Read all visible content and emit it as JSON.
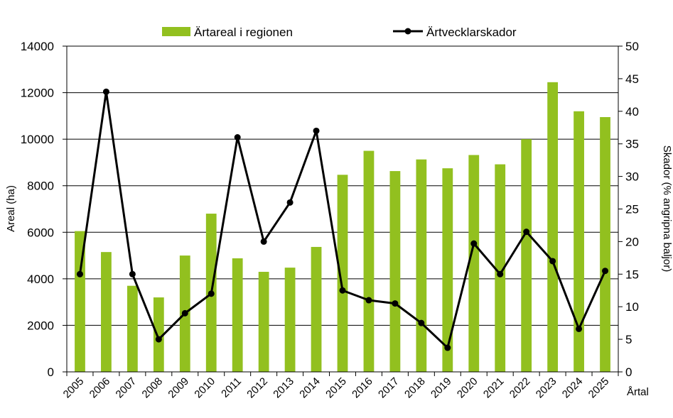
{
  "chart_data": {
    "type": "bar",
    "title": "",
    "categories": [
      "2005",
      "2006",
      "2007",
      "2008",
      "2009",
      "2010",
      "2011",
      "2012",
      "2013",
      "2014",
      "2015",
      "2016",
      "2017",
      "2018",
      "2019",
      "2020",
      "2021",
      "2022",
      "2023",
      "2024",
      "2025"
    ],
    "xlabel": "Årtal",
    "ylabel_left": "Areal (ha)",
    "ylabel_right": "Skador (% angripna baljor)",
    "ylim_left": [
      0,
      14000
    ],
    "ylim_right": [
      0,
      50
    ],
    "yticks_left": [
      "0",
      "2000",
      "4000",
      "6000",
      "8000",
      "10000",
      "12000",
      "14000"
    ],
    "yticks_right": [
      "0",
      "5",
      "10",
      "15",
      "20",
      "25",
      "30",
      "35",
      "40",
      "45",
      "50"
    ],
    "grid": true,
    "legend_position": "top",
    "series": [
      {
        "name": "Ärtareal i regionen",
        "type": "bar",
        "axis": "left",
        "color": "#92C01F",
        "values": [
          6050,
          5150,
          3700,
          3200,
          5000,
          6800,
          4880,
          4300,
          4480,
          5370,
          8470,
          9500,
          8630,
          9130,
          8750,
          9320,
          8920,
          10000,
          12450,
          11200,
          10950
        ]
      },
      {
        "name": "Ärtvecklarskador",
        "type": "line",
        "axis": "right",
        "color": "#000000",
        "values": [
          15,
          43,
          15,
          5,
          9,
          12,
          36,
          20,
          26,
          37,
          12.5,
          11,
          10.5,
          7.5,
          3.7,
          19.7,
          15,
          21.5,
          17,
          6.6,
          15.5
        ]
      }
    ]
  }
}
